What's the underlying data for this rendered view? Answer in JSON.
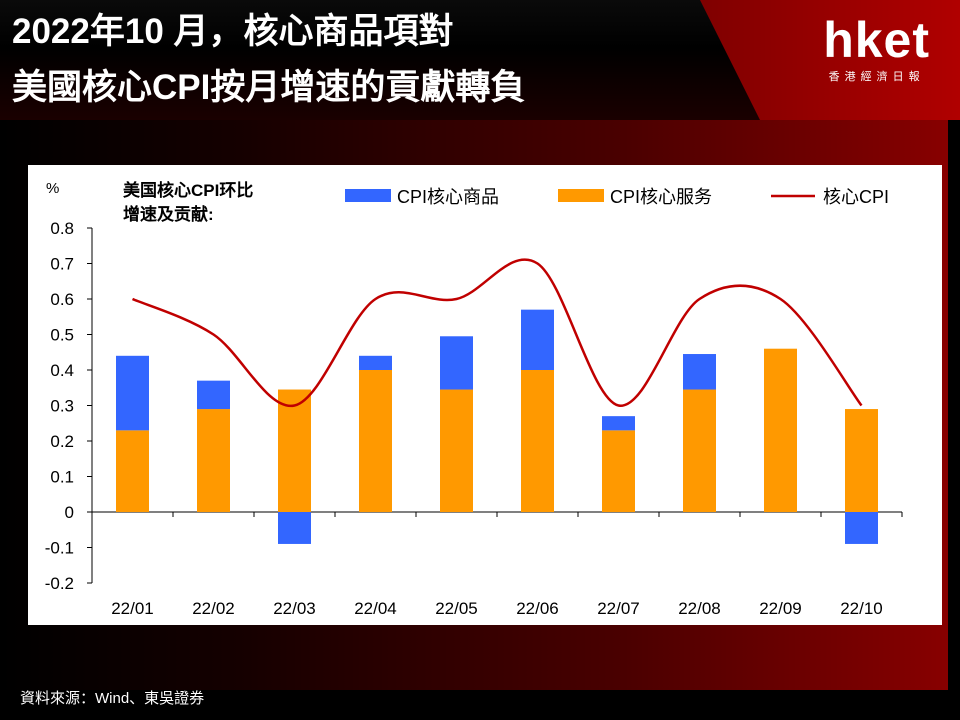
{
  "header": {
    "title_line1": "2022年10 月，核心商品項對",
    "title_line2": "美國核心CPI按月增速的貢獻轉負",
    "logo_text": "hket",
    "logo_subtext": "香港經濟日報"
  },
  "source": "資料來源：Wind、東吳證券",
  "chart_data": {
    "type": "bar",
    "title": "美国核心CPI环比\n增速及贡献:",
    "unit_label": "%",
    "categories": [
      "22/01",
      "22/02",
      "22/03",
      "22/04",
      "22/05",
      "22/06",
      "22/07",
      "22/08",
      "22/09",
      "22/10"
    ],
    "ylim": [
      -0.2,
      0.8
    ],
    "yticks": [
      "0.8",
      "0.7",
      "0.6",
      "0.5",
      "0.4",
      "0.3",
      "0.2",
      "0.1",
      "0",
      "-0.1",
      "-0.2"
    ],
    "series": [
      {
        "name": "CPI核心商品",
        "type": "bar",
        "color": "#3366ff",
        "values": [
          0.21,
          0.08,
          -0.09,
          0.04,
          0.15,
          0.17,
          0.04,
          0.1,
          0.0,
          -0.09
        ]
      },
      {
        "name": "CPI核心服务",
        "type": "bar",
        "color": "#ff9900",
        "values": [
          0.23,
          0.29,
          0.345,
          0.4,
          0.345,
          0.4,
          0.23,
          0.345,
          0.46,
          0.29
        ]
      },
      {
        "name": "核心CPI",
        "type": "line",
        "color": "#c00000",
        "values": [
          0.6,
          0.5,
          0.3,
          0.6,
          0.6,
          0.7,
          0.3,
          0.6,
          0.6,
          0.3
        ]
      }
    ],
    "legend_position": "top"
  }
}
